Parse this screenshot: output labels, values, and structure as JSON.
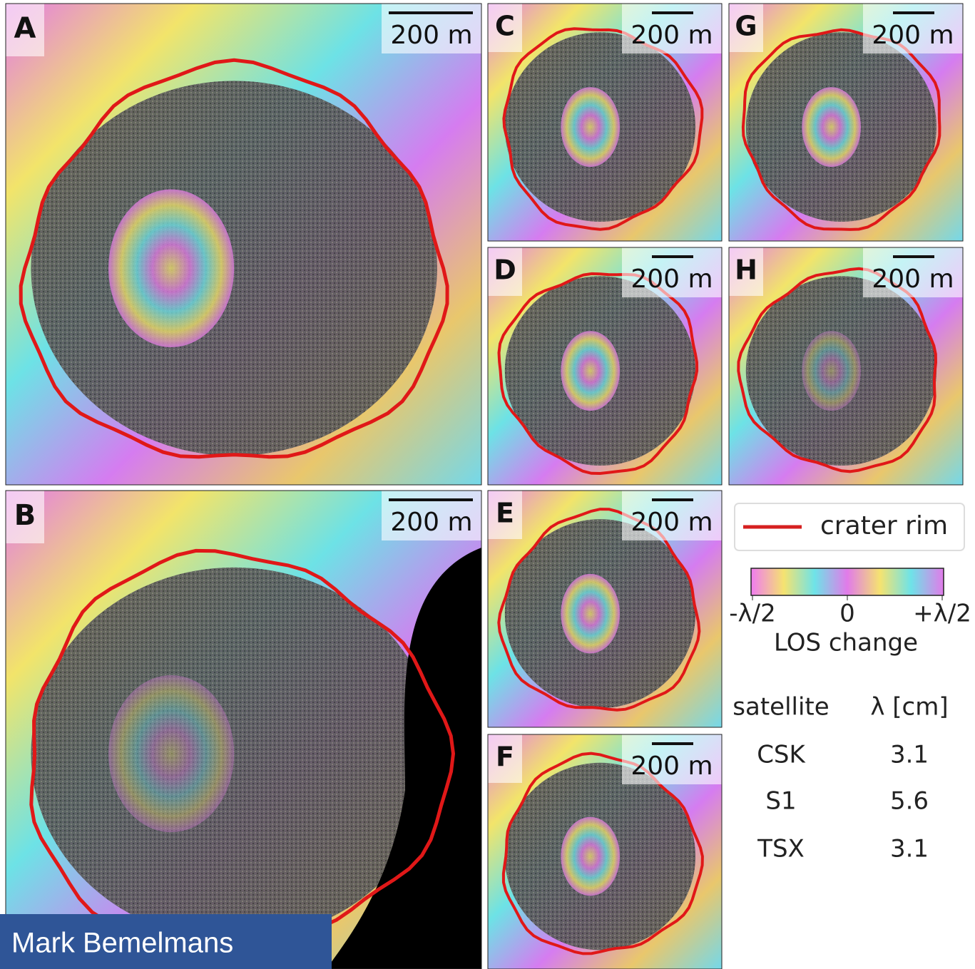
{
  "panels": [
    {
      "label": "A",
      "scale": "200 m"
    },
    {
      "label": "B",
      "scale": "200 m"
    },
    {
      "label": "C",
      "scale": "200 m"
    },
    {
      "label": "G",
      "scale": "200 m"
    },
    {
      "label": "D",
      "scale": "200 m"
    },
    {
      "label": "H",
      "scale": "200 m"
    },
    {
      "label": "E",
      "scale": "200 m"
    },
    {
      "label": "F",
      "scale": "200 m"
    }
  ],
  "legend": {
    "rim": "crater rim"
  },
  "colorbar": {
    "ticks": [
      "-λ/2",
      "0",
      "+λ/2"
    ],
    "label": "LOS change"
  },
  "table": {
    "header": [
      "satellite",
      "λ [cm]"
    ],
    "rows": [
      [
        "CSK",
        "3.1"
      ],
      [
        "S1",
        "5.6"
      ],
      [
        "TSX",
        "3.1"
      ]
    ]
  },
  "author": "Mark Bemelmans"
}
